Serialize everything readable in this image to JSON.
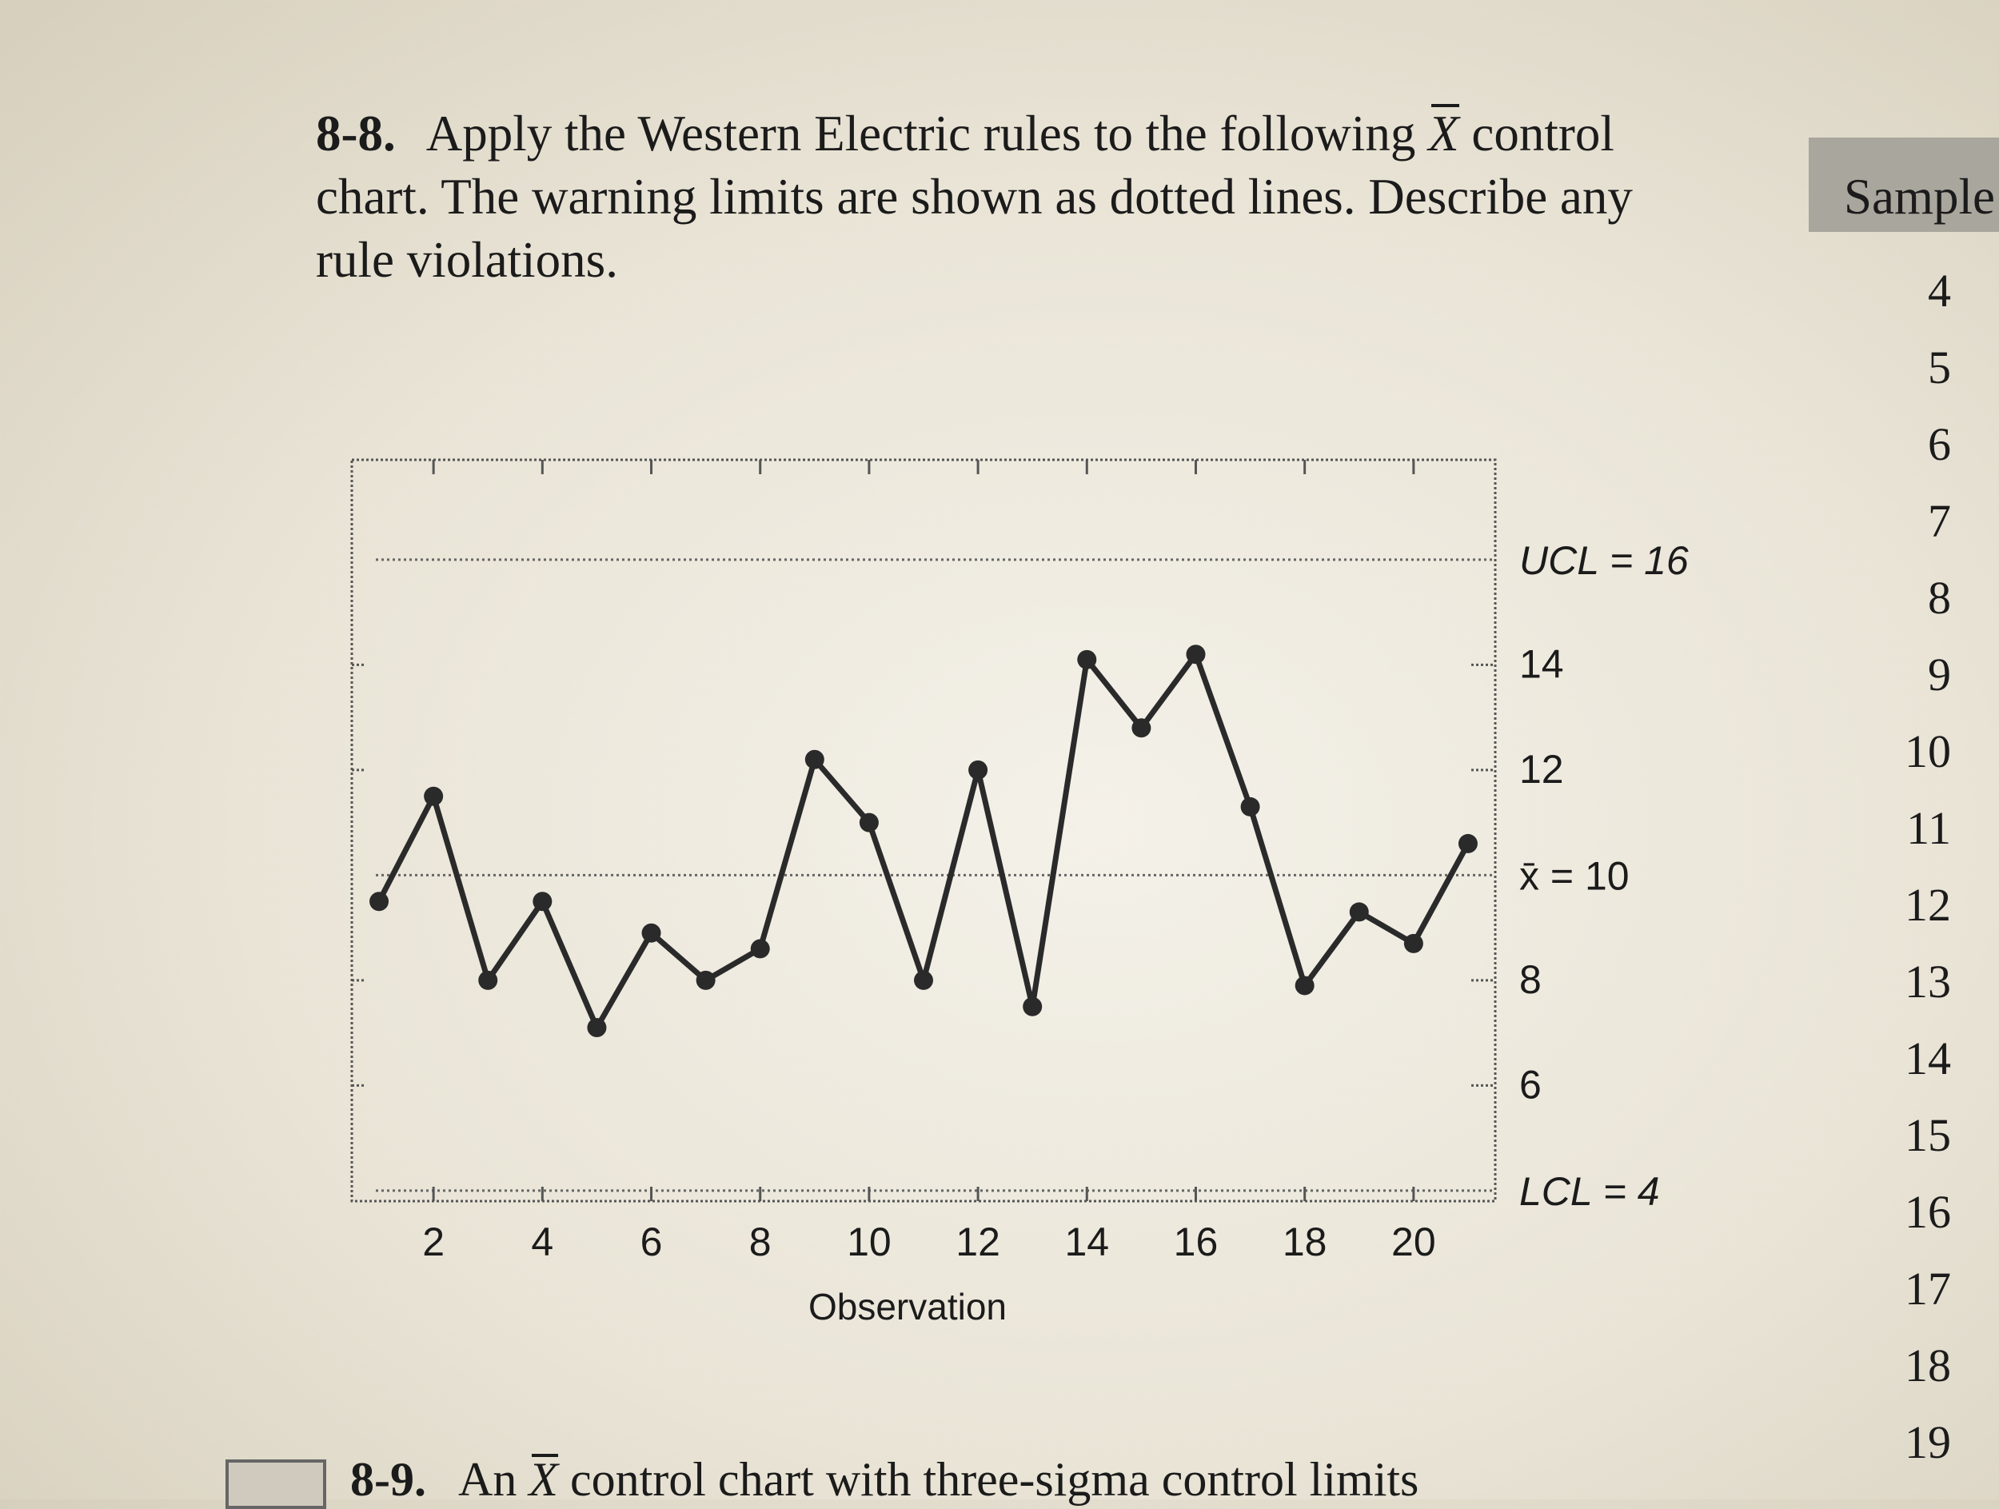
{
  "problem": {
    "number": "8-8.",
    "line1_pre": "Apply the Western Electric rules to the following",
    "line1_sym": "X",
    "line1_post": "control",
    "line2": "chart. The warning limits are shown as dotted lines. Describe any",
    "line3": "rule violations."
  },
  "side_table": {
    "header": "Sample",
    "rows": [
      "4",
      "5",
      "6",
      "7",
      "8",
      "9",
      "10",
      "11",
      "12",
      "13",
      "14",
      "15",
      "16",
      "17",
      "18",
      "19"
    ]
  },
  "next_problem": {
    "number": "8-9.",
    "text_pre": "An",
    "sym": "X",
    "text_post": "control chart with three-sigma control limits"
  },
  "chart_data": {
    "type": "line",
    "x": [
      1,
      2,
      3,
      4,
      5,
      6,
      7,
      8,
      9,
      10,
      11,
      12,
      13,
      14,
      15,
      16,
      17,
      18,
      19,
      20,
      21
    ],
    "values": [
      9.5,
      11.5,
      8,
      9.5,
      7.1,
      8.9,
      8,
      8.6,
      12.2,
      11,
      8,
      12,
      7.5,
      14.1,
      12.8,
      14.2,
      11.3,
      7.9,
      9.3,
      8.7,
      10.6
    ],
    "xlabel": "Observation",
    "xticks": [
      "2",
      "4",
      "6",
      "8",
      "10",
      "12",
      "14",
      "16",
      "18",
      "20"
    ],
    "ytick_labels": [
      "14",
      "12",
      "8",
      "6"
    ],
    "xlim": [
      0.5,
      21.5
    ],
    "ylim": [
      3.8,
      17.9
    ],
    "ucl": 16,
    "center": 10,
    "lcl": 4,
    "ucl_label": "UCL = 16",
    "center_label": "x̄ = 10",
    "lcl_label": "LCL = 4",
    "line_color": "#2a2a2a"
  }
}
